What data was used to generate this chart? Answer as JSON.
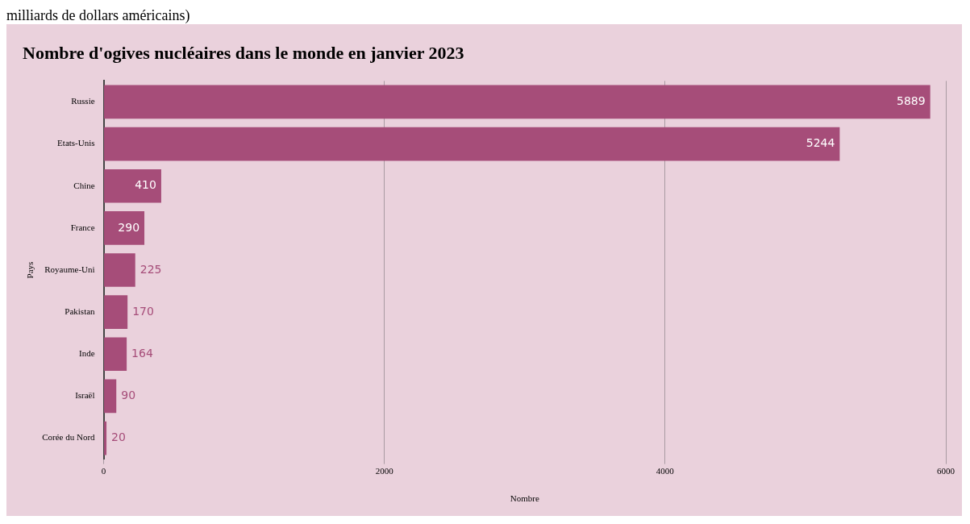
{
  "chart_data": {
    "type": "bar",
    "orientation": "horizontal",
    "title": "Nombre d'ogives nucléaires dans le monde en janvier 2023",
    "xlabel": "Nombre",
    "ylabel": "Pays",
    "annotations": [
      "milliards de dollars américains)"
    ],
    "categories": [
      "Russie",
      "Etats-Unis",
      "Chine",
      "France",
      "Royaume-Uni",
      "Pakistan",
      "Inde",
      "Israël",
      "Corée du Nord"
    ],
    "values": [
      5889,
      5244,
      410,
      290,
      225,
      170,
      164,
      90,
      20
    ],
    "color": "#a64d79",
    "xlim": [
      0,
      6000
    ],
    "xticks": [
      0,
      2000,
      4000,
      6000
    ],
    "grid": "x",
    "data_labels": true,
    "legend": false
  }
}
